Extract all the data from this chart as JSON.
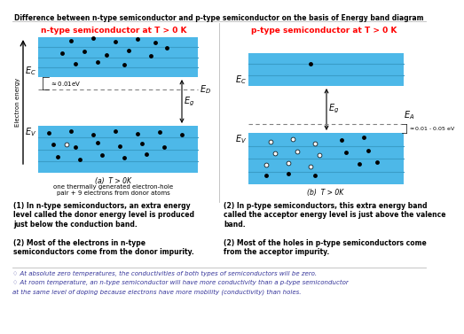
{
  "title": "Difference between n-type semiconductor and p-type semiconductor on the basis of Energy band diagram",
  "n_title": "n-type semiconductor at T > 0 K",
  "p_title": "p-type semiconductor at T > 0 K",
  "n_caption": "(a)  T > 0K",
  "p_caption": "(b)  T > 0K",
  "n_sub1": "one thermally generated electron-hole",
  "n_sub2": "pair + 9 electrons from donor atoms",
  "bg_color": "#ffffff",
  "band_color": "#4db8e8",
  "band_line_color": "#3a9dc8",
  "text1": "(1) In n-type semiconductors, an extra energy\nlevel called the donor energy level is produced\njust below the conduction band.",
  "text2": "(2) Most of the electrons in n-type\nsemiconductors come from the donor impurity.",
  "text3": "(2) In p-type semiconductors, this extra energy band\ncalled the acceptor energy level is just above the valence\nband.",
  "text4": "(2) Most of the holes in p-type semiconductors come\nfrom the acceptor impurity.",
  "note1": "At absolute zero temperatures, the conductivities of both types of semiconductors will be zero.",
  "note2": "At room temperature, an n-type semiconductor will have more conductivity than a p-type semiconductor",
  "note3": "at the same level of doping because electrons have more mobility (conductivity) than holes."
}
